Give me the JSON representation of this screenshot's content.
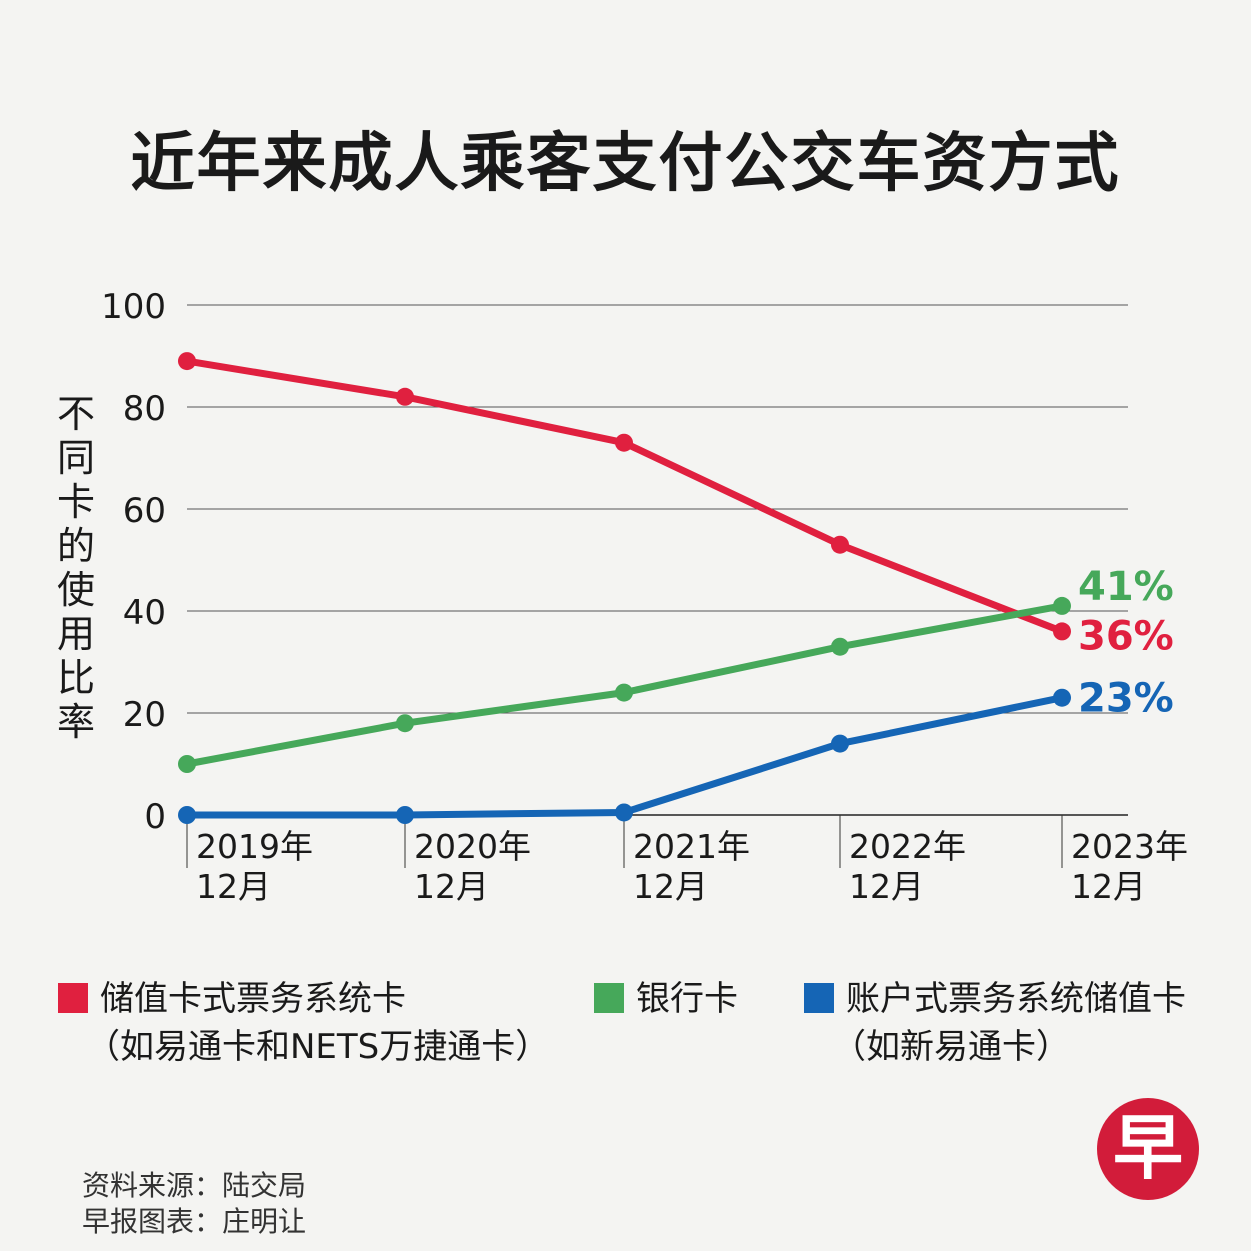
{
  "title": "近年来成人乘客支付公交车资方式",
  "ylabel": "不同卡的使用比率",
  "chart_data": {
    "type": "line",
    "title": "近年来成人乘客支付公交车资方式",
    "ylabel": "不同卡的使用比率",
    "xlabel": "",
    "ylim": [
      0,
      100
    ],
    "yticks": [
      0,
      20,
      40,
      60,
      80,
      100
    ],
    "grid": true,
    "categories": [
      {
        "year": "2019年",
        "month": "12月"
      },
      {
        "year": "2020年",
        "month": "12月"
      },
      {
        "year": "2021年",
        "month": "12月"
      },
      {
        "year": "2022年",
        "month": "12月"
      },
      {
        "year": "2023年",
        "month": "12月"
      }
    ],
    "series": [
      {
        "key": "red",
        "name": "储值卡式票务系统卡",
        "color": "#e0203f",
        "values": [
          89,
          82,
          73,
          53,
          36
        ],
        "end_label": "36%"
      },
      {
        "key": "green",
        "name": "银行卡",
        "color": "#46a85a",
        "values": [
          10,
          18,
          24,
          33,
          41
        ],
        "end_label": "41%"
      },
      {
        "key": "blue",
        "name": "账户式票务系统储值卡",
        "color": "#1565b5",
        "values": [
          0,
          0,
          0.5,
          14,
          23
        ],
        "end_label": "23%"
      }
    ]
  },
  "legend": {
    "red": {
      "line1": "储值卡式票务系统卡",
      "line2": "（如易通卡和NETS万捷通卡）"
    },
    "green": {
      "line1": "银行卡"
    },
    "blue": {
      "line1": "账户式票务系统储值卡",
      "line2": "（如新易通卡）"
    }
  },
  "source": {
    "line1": "资料来源：陆交局",
    "line2": "早报图表：庄明让"
  },
  "logo": "早"
}
